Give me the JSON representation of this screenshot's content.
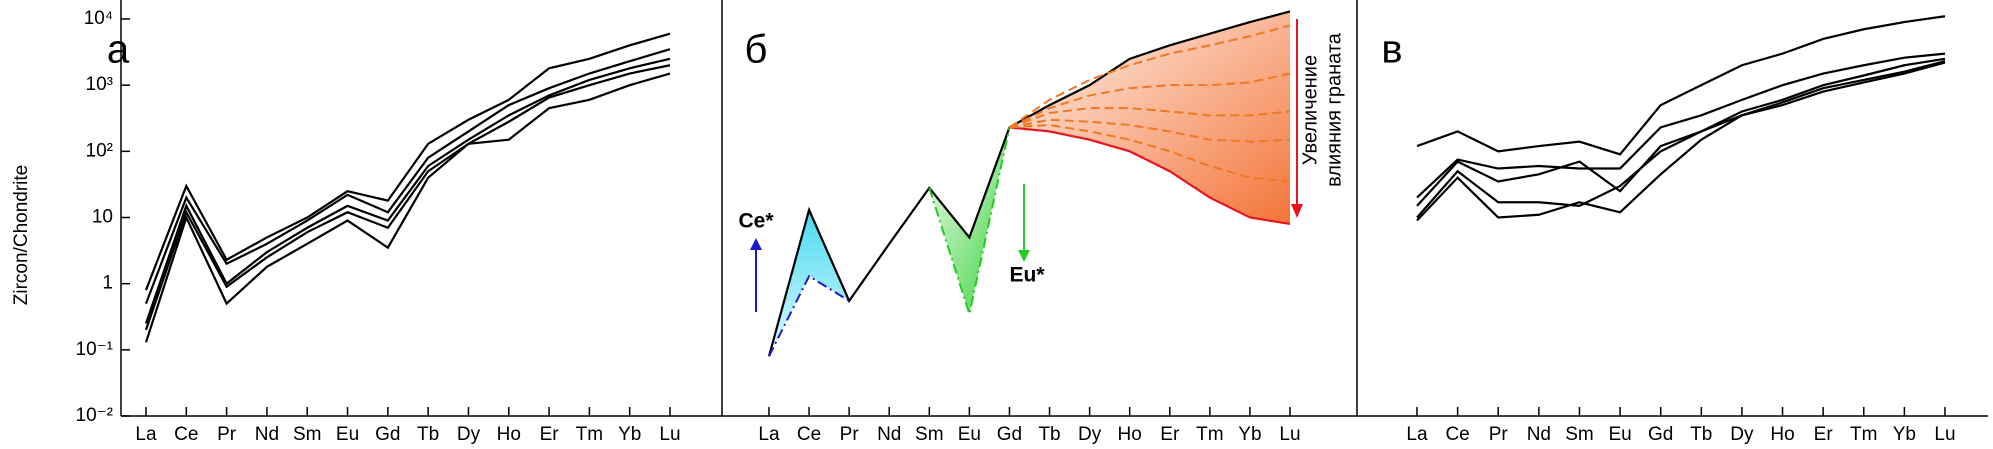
{
  "chart_data": [
    {
      "type": "line",
      "title": "а",
      "ylabel": "Zircon/Chondrite",
      "log": true,
      "ylim": [
        0.01,
        10000
      ],
      "yticks": [
        {
          "value": 0.01,
          "label": "10⁻²"
        },
        {
          "value": 0.1,
          "label": "10⁻¹"
        },
        1,
        10,
        {
          "value": 100,
          "label": "10²"
        },
        {
          "value": 1000,
          "label": "10³"
        },
        {
          "value": 10000,
          "label": "10⁴"
        }
      ],
      "categories": [
        "La",
        "Ce",
        "Pr",
        "Nd",
        "Sm",
        "Eu",
        "Gd",
        "Tb",
        "Dy",
        "Ho",
        "Er",
        "Tm",
        "Yb",
        "Lu"
      ],
      "series": [
        {
          "color": "#000000",
          "values": [
            0.8,
            30,
            2.3,
            5,
            10,
            25,
            18,
            130,
            300,
            600,
            1800,
            2500,
            4000,
            6000
          ]
        },
        {
          "color": "#000000",
          "values": [
            0.5,
            20,
            2,
            4,
            9,
            22,
            12,
            80,
            200,
            500,
            900,
            1500,
            2300,
            3500
          ]
        },
        {
          "color": "#000000",
          "values": [
            0.25,
            15,
            1,
            3,
            7,
            15,
            9,
            60,
            150,
            350,
            700,
            1200,
            1800,
            2500
          ]
        },
        {
          "color": "#000000",
          "values": [
            0.2,
            12,
            0.9,
            2.5,
            6,
            12,
            7,
            50,
            130,
            280,
            650,
            1000,
            1500,
            2000
          ]
        },
        {
          "color": "#000000",
          "values": [
            0.13,
            10,
            0.5,
            1.8,
            4,
            9,
            3.5,
            40,
            130,
            150,
            450,
            600,
            1000,
            1500
          ]
        }
      ]
    },
    {
      "type": "line",
      "title": "б",
      "log": true,
      "ylim": [
        0.01,
        10000
      ],
      "categories": [
        "La",
        "Ce",
        "Pr",
        "Nd",
        "Sm",
        "Eu",
        "Gd",
        "Tb",
        "Dy",
        "Ho",
        "Er",
        "Tm",
        "Yb",
        "Lu"
      ],
      "series": [
        {
          "color": "#000000",
          "style": "solid",
          "values": [
            0.08,
            13,
            0.55,
            4,
            28,
            5,
            230,
            500,
            1000,
            2500,
            4000,
            6000,
            9000,
            13000
          ]
        },
        {
          "color": "#1a1acc",
          "style": "dashdot",
          "fill": "#33d6f0",
          "values": [
            0.08,
            1.3,
            0.55,
            null,
            null,
            null,
            null,
            null,
            null,
            null,
            null,
            null,
            null,
            null
          ]
        },
        {
          "color": "#22cc22",
          "style": "dashdot",
          "fill": "#22cc22",
          "values": [
            null,
            null,
            null,
            null,
            28,
            0.35,
            230,
            null,
            null,
            null,
            null,
            null,
            null,
            null
          ]
        },
        {
          "color": "#e8141e",
          "style": "solid",
          "fill": "#f26522",
          "values": [
            null,
            null,
            null,
            null,
            null,
            null,
            230,
            200,
            150,
            100,
            50,
            20,
            10,
            8
          ]
        },
        {
          "color": "#f07820",
          "style": "dashed",
          "values": [
            null,
            null,
            null,
            null,
            null,
            null,
            230,
            600,
            1200,
            2000,
            3000,
            4000,
            5500,
            8000
          ]
        },
        {
          "color": "#f07820",
          "style": "dashed",
          "values": [
            null,
            null,
            null,
            null,
            null,
            null,
            230,
            450,
            700,
            900,
            1000,
            1000,
            1100,
            1500
          ]
        },
        {
          "color": "#f07820",
          "style": "dashed",
          "values": [
            null,
            null,
            null,
            null,
            null,
            null,
            230,
            380,
            450,
            450,
            400,
            350,
            350,
            400
          ]
        },
        {
          "color": "#f07820",
          "style": "dashed",
          "values": [
            null,
            null,
            null,
            null,
            null,
            null,
            230,
            300,
            280,
            250,
            200,
            150,
            140,
            150
          ]
        },
        {
          "color": "#f07820",
          "style": "dashed",
          "values": [
            null,
            null,
            null,
            null,
            null,
            null,
            230,
            250,
            200,
            150,
            100,
            60,
            40,
            35
          ]
        }
      ],
      "annotations": [
        {
          "text": "Ce*",
          "color": "#1a1acc"
        },
        {
          "text": "Eu*",
          "color": "#22cc22"
        },
        {
          "text": "Увеличение",
          "color": "#e8141e"
        },
        {
          "text": "влияния граната",
          "color": "#e8141e"
        }
      ]
    },
    {
      "type": "line",
      "title": "в",
      "log": true,
      "ylim": [
        0.01,
        10000
      ],
      "categories": [
        "La",
        "Ce",
        "Pr",
        "Nd",
        "Sm",
        "Eu",
        "Gd",
        "Tb",
        "Dy",
        "Ho",
        "Er",
        "Tm",
        "Yb",
        "Lu"
      ],
      "series": [
        {
          "color": "#000000",
          "values": [
            120,
            200,
            100,
            120,
            140,
            90,
            500,
            1000,
            2000,
            3000,
            5000,
            7000,
            9000,
            11000
          ]
        },
        {
          "color": "#000000",
          "values": [
            20,
            75,
            55,
            60,
            55,
            55,
            230,
            350,
            600,
            1000,
            1500,
            2000,
            2600,
            3000
          ]
        },
        {
          "color": "#000000",
          "values": [
            15,
            70,
            35,
            45,
            70,
            25,
            120,
            200,
            400,
            600,
            1000,
            1400,
            2000,
            2500
          ]
        },
        {
          "color": "#000000",
          "values": [
            10,
            50,
            17,
            17,
            15,
            30,
            100,
            200,
            350,
            550,
            900,
            1200,
            1600,
            2300
          ]
        },
        {
          "color": "#000000",
          "values": [
            9,
            40,
            10,
            11,
            17,
            12,
            45,
            150,
            350,
            500,
            800,
            1100,
            1500,
            2200
          ]
        }
      ]
    }
  ]
}
